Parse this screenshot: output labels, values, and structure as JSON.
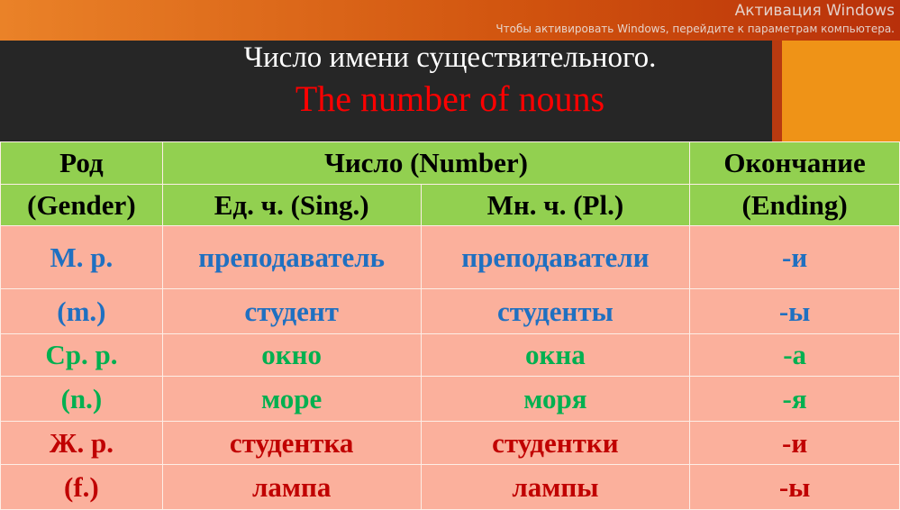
{
  "title_ru": "Число имени существительного.",
  "title_en": "The number of nouns",
  "header": {
    "gender": "Род",
    "number": "Число (Number)",
    "ending": "Окончание",
    "gender_en": "(Gender)",
    "sing": "Ед. ч. (Sing.)",
    "pl": "Мн. ч. (Pl.)",
    "ending_en": "(Ending)"
  },
  "rows": [
    {
      "gender": "М. р.",
      "sing": "преподаватель",
      "pl": "преподаватели",
      "ending": "-и",
      "color": "blue"
    },
    {
      "gender": "(m.)",
      "sing": "студент",
      "pl": "студенты",
      "ending": "-ы",
      "color": "blue"
    },
    {
      "gender": "Ср. р.",
      "sing": "окно",
      "pl": "окна",
      "ending": "-а",
      "color": "green"
    },
    {
      "gender": "(n.)",
      "sing": "море",
      "pl": "моря",
      "ending": "-я",
      "color": "green"
    },
    {
      "gender": "Ж. р.",
      "sing": "студентка",
      "pl": "студентки",
      "ending": "-и",
      "color": "red"
    },
    {
      "gender": "(f.)",
      "sing": "лампа",
      "pl": "лампы",
      "ending": "-ы",
      "color": "red"
    }
  ],
  "colors": {
    "blue": "#1f70c1",
    "green": "#00b050",
    "red": "#c00000",
    "header": "#92d050",
    "body": "#fbb09c"
  },
  "watermark": {
    "title": "Активация Windows",
    "text": "Чтобы активировать Windows, перейдите к параметрам компьютера."
  }
}
